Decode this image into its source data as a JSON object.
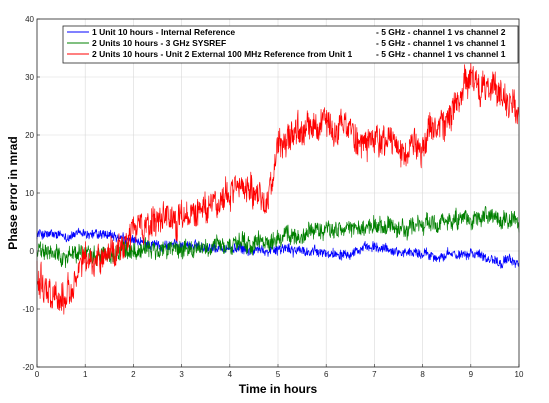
{
  "chart_data": {
    "type": "line",
    "title": "",
    "xlabel": "Time in hours",
    "ylabel": "Phase error in mrad",
    "xlim": [
      0,
      10
    ],
    "ylim": [
      -20,
      40
    ],
    "xticks": [
      "0",
      "1",
      "2",
      "3",
      "4",
      "5",
      "6",
      "7",
      "8",
      "9",
      "10"
    ],
    "yticks": [
      "-20",
      "-10",
      "0",
      "10",
      "20",
      "30",
      "40"
    ],
    "grid": true,
    "legend_position": "top-right",
    "series": [
      {
        "name": "1 Unit 10 hours    - Internal Reference",
        "legend_suffix": "- 5 GHz - channel 1 vs channel 2",
        "color": "#0000ff",
        "noise": 0.9,
        "x": [
          0,
          0.5,
          1,
          1.5,
          2,
          2.5,
          3,
          3.5,
          4,
          4.5,
          5,
          5.5,
          6,
          6.5,
          7,
          7.5,
          8,
          8.5,
          9,
          9.5,
          10
        ],
        "y": [
          3,
          2.5,
          3,
          2.5,
          1.5,
          1,
          1,
          0.8,
          0.5,
          0,
          0.5,
          0,
          -0.5,
          0,
          0.5,
          0,
          -0.5,
          -1,
          0,
          -1.5,
          -2
        ]
      },
      {
        "name": "2 Units 10 hours - 3 GHz SYSREF",
        "legend_suffix": "- 5 GHz - channel 1 vs channel 1",
        "color": "#008000",
        "noise": 1.6,
        "x": [
          0,
          0.5,
          1,
          1.5,
          2,
          2.5,
          3,
          3.5,
          4,
          4.5,
          5,
          5.5,
          6,
          6.5,
          7,
          7.5,
          8,
          8.5,
          9,
          9.5,
          10
        ],
        "y": [
          0,
          -1,
          0,
          -0.5,
          0.5,
          0,
          0.5,
          0.5,
          0.8,
          1,
          2,
          3,
          4,
          3.5,
          4,
          3.5,
          4.5,
          5,
          5,
          5.5,
          5
        ]
      },
      {
        "name": "2 Units 10 hours - Unit 2 External 100 MHz Reference from Unit 1",
        "legend_suffix": "- 5 GHz - channel 1 vs channel 1",
        "color": "#ff0000",
        "noise": 2.8,
        "x": [
          0,
          0.3,
          0.6,
          1,
          1.3,
          1.7,
          2,
          2.3,
          2.7,
          3,
          3.5,
          4,
          4.5,
          4.8,
          5,
          5.5,
          6,
          6.5,
          7,
          7.5,
          8,
          8.5,
          8.8,
          9,
          9.3,
          9.6,
          10
        ],
        "y": [
          -4,
          -7,
          -8,
          -2,
          -1,
          0,
          4,
          4,
          5,
          5,
          8,
          10,
          11,
          9,
          18,
          20,
          22,
          21,
          18,
          19,
          18,
          23,
          26,
          31,
          28,
          27,
          23
        ]
      }
    ]
  }
}
